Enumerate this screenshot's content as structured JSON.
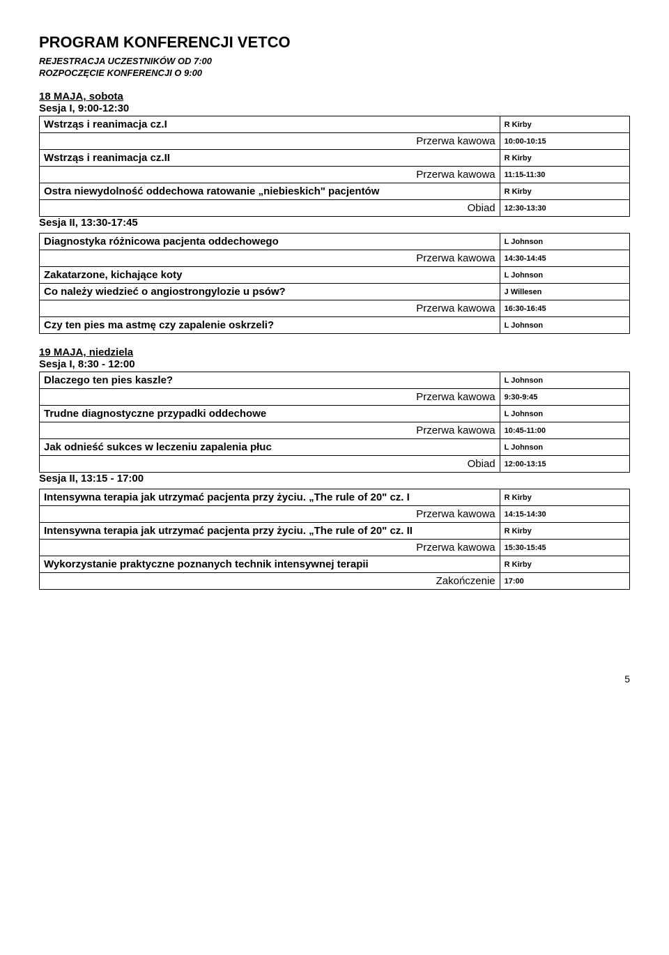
{
  "title": "PROGRAM KONFERENCJI VETCO",
  "subtitles": [
    "REJESTRACJA UCZESTNIKÓW OD 7:00",
    "ROZPOCZĘCIE KONFERENCJI O 9:00"
  ],
  "labels": {
    "break": "Przerwa kawowa",
    "lunch": "Obiad",
    "end": "Zakończenie"
  },
  "day1": {
    "heading": "18 MAJA, sobota",
    "session1_heading": "Sesja I, 9:00-12:30",
    "session2_heading": "Sesja II, 13:30-17:45",
    "rows1": [
      {
        "type": "topic",
        "text": "Wstrząs i reanimacja cz.I",
        "speaker": "R Kirby"
      },
      {
        "type": "break",
        "label": "Przerwa kawowa",
        "time": "10:00-10:15"
      },
      {
        "type": "topic",
        "text": "Wstrząs i reanimacja cz.II",
        "speaker": "R Kirby"
      },
      {
        "type": "break",
        "label": "Przerwa kawowa",
        "time": "11:15-11:30"
      },
      {
        "type": "topic",
        "text": "Ostra niewydolność oddechowa ratowanie „niebieskich\" pacjentów",
        "speaker": "R Kirby"
      },
      {
        "type": "break",
        "label": "Obiad",
        "time": "12:30-13:30"
      }
    ],
    "rows2": [
      {
        "type": "topic",
        "text": "Diagnostyka różnicowa pacjenta oddechowego",
        "speaker": "L Johnson"
      },
      {
        "type": "break",
        "label": "Przerwa kawowa",
        "time": "14:30-14:45"
      },
      {
        "type": "topic",
        "text": "Zakatarzone,  kichające koty",
        "speaker": "L Johnson"
      },
      {
        "type": "topic",
        "text": "Co należy wiedzieć o angiostrongylozie u psów?",
        "speaker": "J Willesen"
      },
      {
        "type": "break",
        "label": "Przerwa kawowa",
        "time": "16:30-16:45"
      },
      {
        "type": "topic",
        "text": "Czy ten pies ma astmę czy zapalenie oskrzeli?",
        "speaker": "L Johnson"
      }
    ]
  },
  "day2": {
    "heading": "19 MAJA, niedziela",
    "session1_heading": "Sesja I, 8:30 - 12:00",
    "session2_heading": "Sesja II, 13:15 - 17:00",
    "rows1": [
      {
        "type": "topic",
        "text": "Dlaczego ten pies kaszle?",
        "speaker": "L Johnson"
      },
      {
        "type": "break",
        "label": "Przerwa kawowa",
        "time": "9:30-9:45"
      },
      {
        "type": "topic",
        "text": "Trudne diagnostyczne przypadki oddechowe",
        "speaker": "L Johnson"
      },
      {
        "type": "break",
        "label": "Przerwa kawowa",
        "time": "10:45-11:00"
      },
      {
        "type": "topic",
        "text": "Jak odnieść sukces w leczeniu zapalenia płuc",
        "speaker": "L Johnson"
      },
      {
        "type": "break",
        "label": "Obiad",
        "time": "12:00-13:15"
      }
    ],
    "rows2": [
      {
        "type": "topic",
        "text": "Intensywna terapia jak utrzymać pacjenta przy życiu. „The rule of 20\" cz. I",
        "speaker": "R Kirby"
      },
      {
        "type": "break",
        "label": "Przerwa kawowa",
        "time": "14:15-14:30"
      },
      {
        "type": "topic",
        "text": "Intensywna terapia jak utrzymać pacjenta przy życiu. „The rule of 20\" cz. II",
        "speaker": "R Kirby"
      },
      {
        "type": "break",
        "label": "Przerwa kawowa",
        "time": "15:30-15:45"
      },
      {
        "type": "topic",
        "text": "Wykorzystanie praktyczne poznanych technik intensywnej terapii",
        "speaker": "R Kirby"
      },
      {
        "type": "break",
        "label": "Zakończenie",
        "time": "17:00"
      }
    ]
  },
  "page_number": "5"
}
